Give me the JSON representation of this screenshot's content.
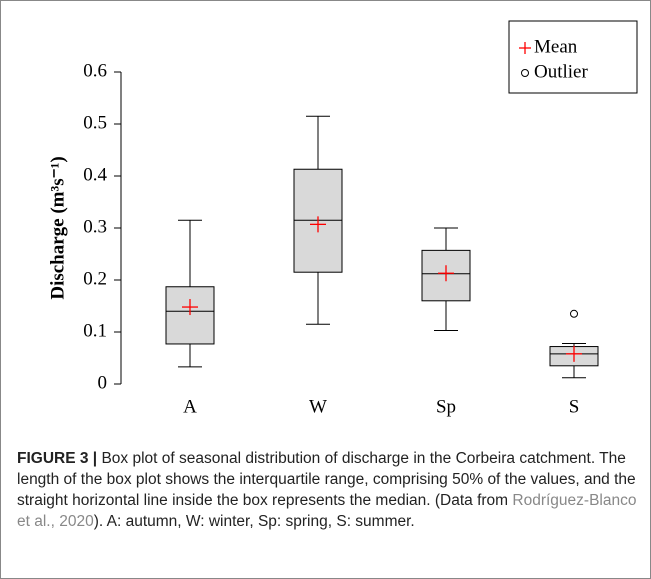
{
  "chart_data": {
    "type": "box",
    "y_label": "Discharge (m³s⁻¹)",
    "categories": [
      "A",
      "W",
      "Sp",
      "S"
    ],
    "boxes": [
      {
        "low": 0.033,
        "q1": 0.077,
        "median": 0.14,
        "q3": 0.187,
        "high": 0.315,
        "mean": 0.148,
        "outliers": []
      },
      {
        "low": 0.115,
        "q1": 0.215,
        "median": 0.315,
        "q3": 0.413,
        "high": 0.515,
        "mean": 0.307,
        "outliers": []
      },
      {
        "low": 0.103,
        "q1": 0.16,
        "median": 0.212,
        "q3": 0.257,
        "high": 0.3,
        "mean": 0.213,
        "outliers": []
      },
      {
        "low": 0.012,
        "q1": 0.035,
        "median": 0.058,
        "q3": 0.072,
        "high": 0.078,
        "mean": 0.058,
        "outliers": [
          0.135
        ]
      }
    ],
    "box_color": "#d9d9d9",
    "mean_color": "#ff0000",
    "ylim": [
      0,
      0.6
    ],
    "yticks": [
      0,
      0.1,
      0.2,
      0.3,
      0.4,
      0.5,
      0.6
    ],
    "legend": {
      "position": "top-right",
      "mean": "Mean",
      "outlier": "Outlier"
    }
  },
  "caption": {
    "label": "FIGURE 3 |",
    "text": " Box plot of seasonal distribution of discharge in the Corbeira catchment. The length of the box plot shows the interquartile range, comprising 50% of the values, and the straight horizontal line inside the box represents the median. (Data from ",
    "link": "Rodríguez-Blanco et al., 2020",
    "text_after": "). A: autumn, W: winter, Sp: spring, S: summer."
  }
}
